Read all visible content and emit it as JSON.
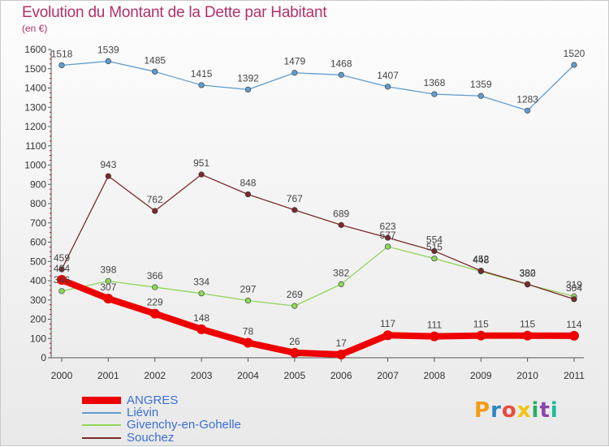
{
  "header": {
    "title": "Evolution du Montant de la Dette par Habitant",
    "unit": "(en €)"
  },
  "chart_data": {
    "type": "line",
    "x": [
      "2000",
      "2001",
      "2002",
      "2003",
      "2004",
      "2005",
      "2006",
      "2007",
      "2008",
      "2009",
      "2010",
      "2011"
    ],
    "ylim": [
      0,
      1600
    ],
    "yticks": [
      0,
      100,
      200,
      300,
      400,
      500,
      600,
      700,
      800,
      900,
      1000,
      1100,
      1200,
      1300,
      1400,
      1500,
      1600
    ],
    "grid": false,
    "legend_position": "bottom-left",
    "series": [
      {
        "name": "ANGRES",
        "color": "#ee0000",
        "values": [
          404,
          307,
          229,
          148,
          78,
          26,
          17,
          117,
          111,
          115,
          115,
          114
        ]
      },
      {
        "name": "Liévin",
        "color": "#5f9ccf",
        "values": [
          1518,
          1539,
          1485,
          1415,
          1392,
          1479,
          1468,
          1407,
          1368,
          1359,
          1283,
          1520
        ]
      },
      {
        "name": "Givenchy-en-Gohelle",
        "color": "#8fd65a",
        "values": [
          346,
          398,
          366,
          334,
          297,
          269,
          382,
          577,
          515,
          448,
          380,
          319
        ]
      },
      {
        "name": "Souchez",
        "color": "#7a2a2a",
        "values": [
          459,
          943,
          762,
          951,
          848,
          767,
          689,
          623,
          554,
          452,
          382,
          304
        ]
      }
    ]
  },
  "logo": {
    "text": "Proxiti"
  }
}
